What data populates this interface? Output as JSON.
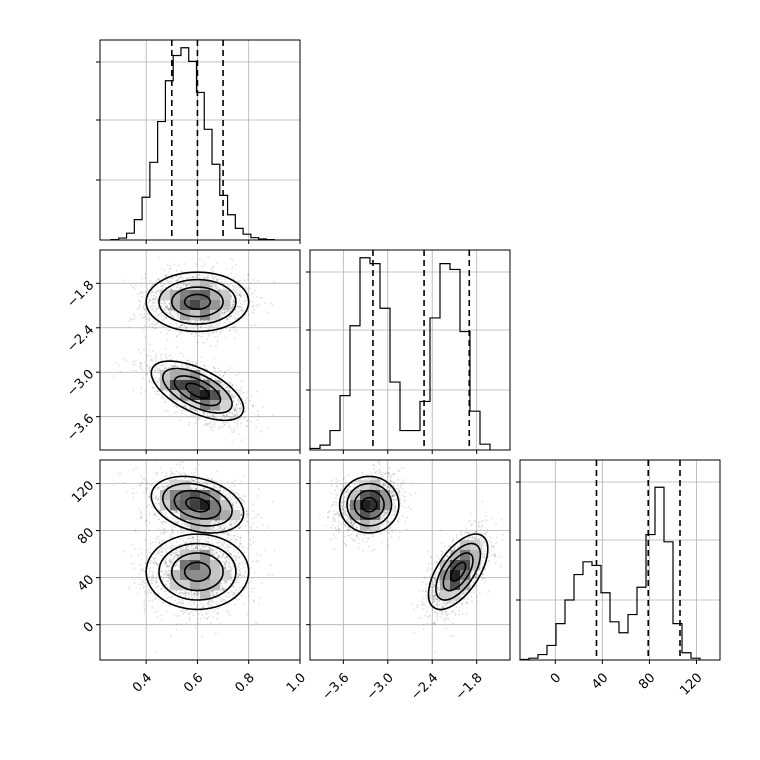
{
  "chart_data": {
    "type": "corner",
    "colors": {
      "ink": "#000000",
      "grid": "#b0b0b0",
      "frame": "#000000",
      "scatter": "#000000"
    },
    "grid": true,
    "params": [
      {
        "name": "",
        "range": [
          0.22,
          1.0
        ],
        "ticks": [
          0.4,
          0.6,
          0.8,
          1.0
        ],
        "tick_labels": [
          "0.4",
          "0.6",
          "0.8",
          "1.0"
        ],
        "quantiles": [
          0.5,
          0.6,
          0.7
        ],
        "hist_bin_width": 0.0303,
        "hist_x_start": 0.263,
        "hist_counts": [
          0.2,
          1.0,
          3.5,
          10.5,
          22.0,
          40.0,
          61.0,
          82.0,
          95.0,
          99.0,
          92.0,
          76.0,
          57.0,
          39.0,
          23.0,
          13.0,
          6.0,
          3.0,
          1.2,
          0.5,
          0.2
        ],
        "hist_ylim": [
          0,
          103
        ]
      },
      {
        "name": "",
        "range": [
          -4.05,
          -1.35
        ],
        "ticks": [
          -3.6,
          -3.0,
          -2.4,
          -1.8
        ],
        "tick_labels": [
          "−3.6",
          "−3.0",
          "−2.4",
          "−1.8"
        ],
        "quantiles": [
          -3.2,
          -2.51,
          -1.9
        ],
        "hist_bin_width": 0.135,
        "hist_x_start": -4.05,
        "hist_counts": [
          0.8,
          2.5,
          10.0,
          28.0,
          64.0,
          99.0,
          96.0,
          73.0,
          35.0,
          10.0,
          10.0,
          25.0,
          68.0,
          96.0,
          93.0,
          61.0,
          20.0,
          3.0
        ],
        "hist_ylim": [
          0,
          103
        ]
      },
      {
        "name": "",
        "range": [
          -30,
          140
        ],
        "ticks": [
          0,
          40,
          80,
          120
        ],
        "tick_labels": [
          "0",
          "40",
          "80",
          "120"
        ],
        "quantiles": [
          35,
          79,
          106
        ],
        "hist_bin_width": 7.65,
        "hist_x_start": -30,
        "hist_counts": [
          0.3,
          1.0,
          3.0,
          8.0,
          20.0,
          33.0,
          47.0,
          54.0,
          52.0,
          37.0,
          21.0,
          15.0,
          25.0,
          40.0,
          69.0,
          95.0,
          65.0,
          20.0,
          4.0,
          1.0
        ],
        "hist_ylim": [
          0,
          110
        ]
      }
    ],
    "modes": [
      {
        "center": [
          0.6,
          -2.05,
          45
        ],
        "sigma": [
          0.1,
          0.2,
          16
        ],
        "corr01": 0.0,
        "corr02": 0.0,
        "corr12": 0.6,
        "weight": 0.5
      },
      {
        "center": [
          0.6,
          -3.25,
          102
        ],
        "sigma": [
          0.09,
          0.2,
          12
        ],
        "corr01": -0.6,
        "corr02": -0.3,
        "corr12": 0.0,
        "weight": 0.5
      }
    ]
  }
}
